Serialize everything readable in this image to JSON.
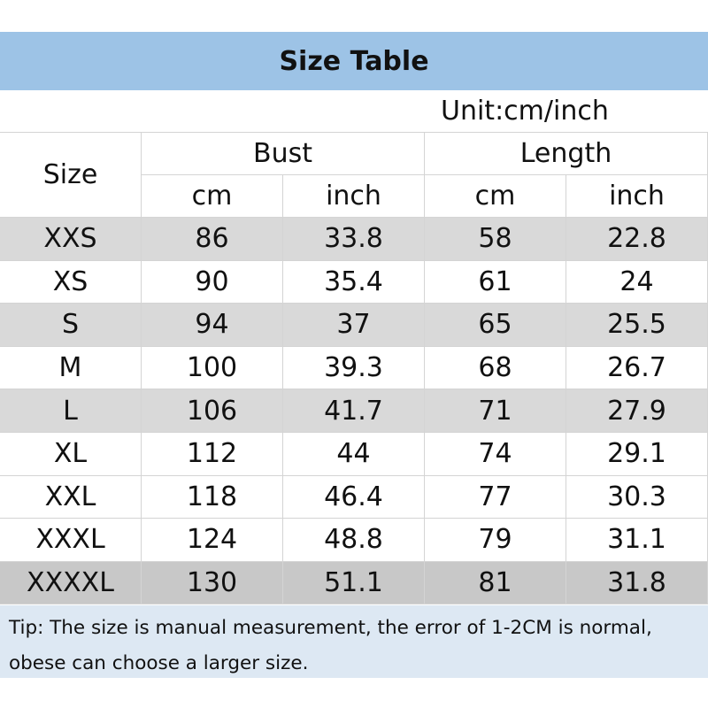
{
  "header": {
    "title": "Size Table",
    "unit": "Unit:cm/inch"
  },
  "table": {
    "size_header": "Size",
    "groups": [
      "Bust",
      "Length"
    ],
    "subheaders": [
      "cm",
      "inch",
      "cm",
      "inch"
    ],
    "rows": [
      [
        "XXS",
        "86",
        "33.8",
        "58",
        "22.8"
      ],
      [
        "XS",
        "90",
        "35.4",
        "61",
        "24"
      ],
      [
        "S",
        "94",
        "37",
        "65",
        "25.5"
      ],
      [
        "M",
        "100",
        "39.3",
        "68",
        "26.7"
      ],
      [
        "L",
        "106",
        "41.7",
        "71",
        "27.9"
      ],
      [
        "XL",
        "112",
        "44",
        "74",
        "29.1"
      ],
      [
        "XXL",
        "118",
        "46.4",
        "77",
        "30.3"
      ],
      [
        "XXXL",
        "124",
        "48.8",
        "79",
        "31.1"
      ],
      [
        "XXXXL",
        "130",
        "51.1",
        "81",
        "31.8"
      ]
    ]
  },
  "tip": {
    "lines": [
      "Tip: The size is manual measurement, the error of 1-2CM is normal,",
      "obese can choose a larger size."
    ]
  }
}
